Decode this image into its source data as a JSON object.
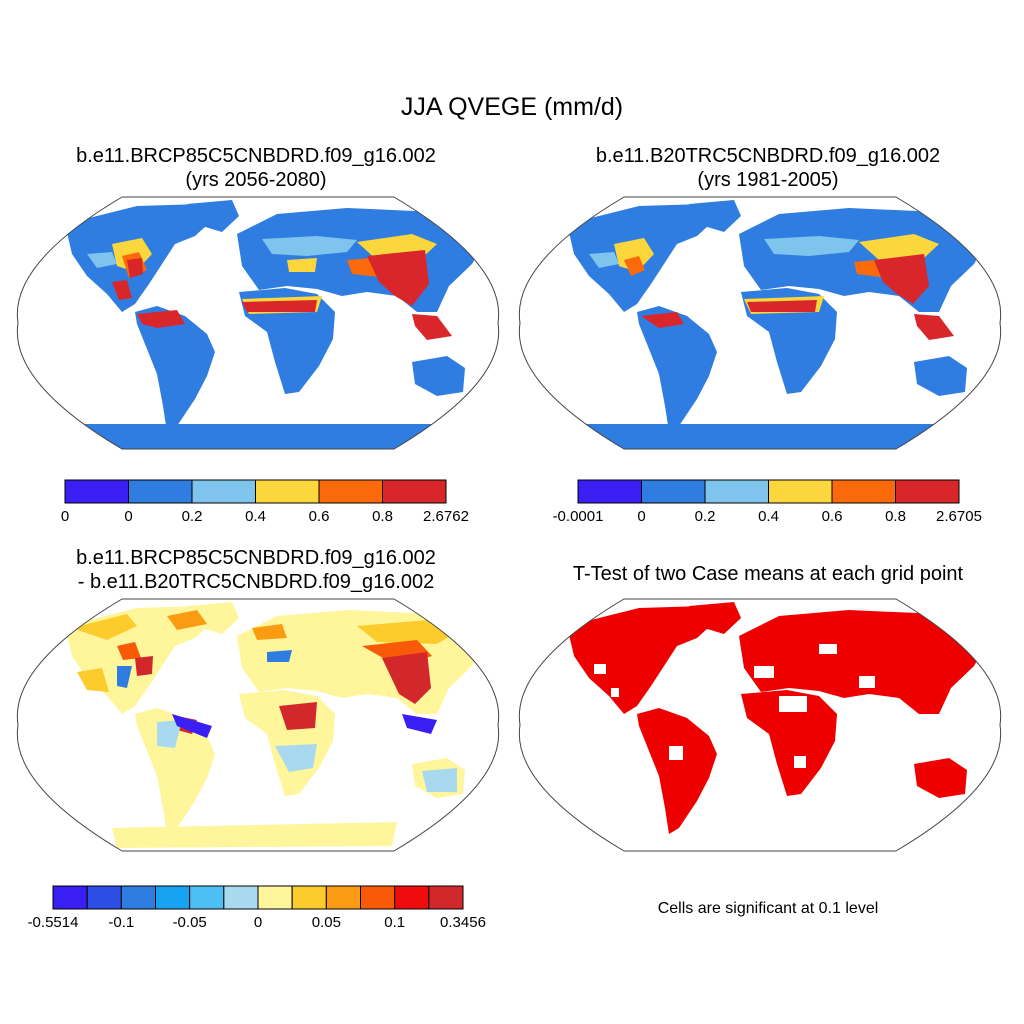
{
  "title": "JJA QVEGE (mm/d)",
  "panels": [
    {
      "title_line1": "b.e11.BRCP85C5CNBDRD.f09_g16.002",
      "title_line2": "(yrs 2056-2080)",
      "colorbar": {
        "labels": [
          "0",
          "0",
          "0.2",
          "0.4",
          "0.6",
          "0.8",
          "2.6762"
        ],
        "colors": [
          "#3a1ff5",
          "#2f7de1",
          "#7ec4ec",
          "#fbd63c",
          "#fa6a0a",
          "#d8262b"
        ]
      }
    },
    {
      "title_line1": "b.e11.B20TRC5CNBDRD.f09_g16.002",
      "title_line2": "(yrs 1981-2005)",
      "colorbar": {
        "labels": [
          "-0.0001",
          "0",
          "0.2",
          "0.4",
          "0.6",
          "0.8",
          "2.6705"
        ],
        "colors": [
          "#3a1ff5",
          "#2f7de1",
          "#7ec4ec",
          "#fbd63c",
          "#fa6a0a",
          "#d8262b"
        ]
      }
    },
    {
      "title_line1": "b.e11.BRCP85C5CNBDRD.f09_g16.002",
      "title_line2": "- b.e11.B20TRC5CNBDRD.f09_g16.002",
      "colorbar": {
        "labels": [
          "-0.5514",
          "-0.1",
          "-0.05",
          "0",
          "0.05",
          "0.1",
          "0.3456"
        ],
        "colors": [
          "#3a1ff5",
          "#2c4de6",
          "#2f7de1",
          "#18a3f2",
          "#4cc0f4",
          "#a9d9ef",
          "#fff59b",
          "#fccb2c",
          "#fa9b12",
          "#f95a07",
          "#f00c0c",
          "#d3282b"
        ]
      }
    },
    {
      "title_line1": "T-Test of two Case means at each grid point",
      "note": "Cells are significant at 0.1 level",
      "fill_color": "#ee0000"
    }
  ]
}
